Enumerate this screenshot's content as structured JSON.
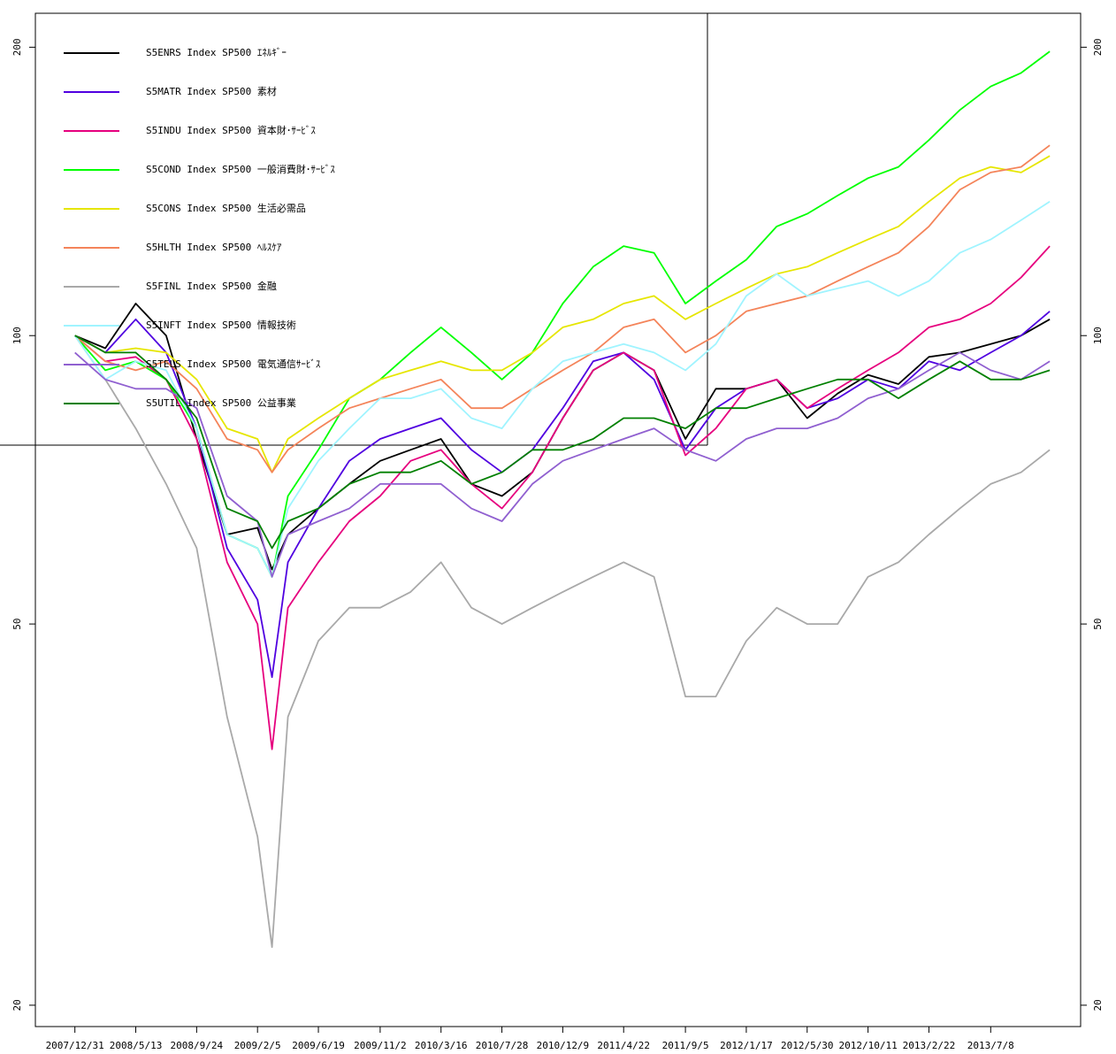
{
  "chart_data": {
    "type": "line",
    "x": [
      "2007/12/31",
      "2008/3/7",
      "2008/5/13",
      "2008/7/19",
      "2008/9/24",
      "2008/11/30",
      "2009/2/5",
      "2009/3/9",
      "2009/4/13",
      "2009/6/19",
      "2009/8/26",
      "2009/11/2",
      "2010/1/8",
      "2010/3/16",
      "2010/5/22",
      "2010/7/28",
      "2010/10/3",
      "2010/12/9",
      "2011/2/14",
      "2011/4/22",
      "2011/6/28",
      "2011/9/5",
      "2011/11/11",
      "2012/1/17",
      "2012/3/24",
      "2012/5/30",
      "2012/8/5",
      "2012/10/11",
      "2012/12/17",
      "2013/2/22",
      "2013/5/1",
      "2013/7/8",
      "2013/9/13",
      "2013/11/15"
    ],
    "xlim": [
      "2007/10/5",
      "2014/1/22"
    ],
    "xticks": [
      "2007/12/31",
      "2008/5/13",
      "2008/9/24",
      "2009/2/5",
      "2009/6/19",
      "2009/11/2",
      "2010/3/16",
      "2010/7/28",
      "2010/12/9",
      "2011/4/22",
      "2011/9/5",
      "2012/1/17",
      "2012/5/30",
      "2012/10/11",
      "2013/2/22",
      "2013/7/8"
    ],
    "ylim": [
      19,
      217
    ],
    "yticks": [
      20,
      50,
      100,
      200
    ],
    "log_y": true,
    "legend": "upper left",
    "series": [
      {
        "name": "S5ENRS Index SP500 ｴﾈﾙｷﾞｰ",
        "color": "#000000",
        "values": [
          100,
          97,
          108,
          100,
          78,
          62,
          63,
          57,
          62,
          66,
          70,
          74,
          76,
          78,
          70,
          68,
          72,
          82,
          92,
          96,
          92,
          78,
          88,
          88,
          90,
          82,
          87,
          91,
          89,
          95,
          96,
          98,
          100,
          104
        ]
      },
      {
        "name": "S5MATR Index SP500 素材",
        "color": "#5000e0",
        "values": [
          100,
          96,
          104,
          96,
          80,
          60,
          53,
          44,
          58,
          66,
          74,
          78,
          80,
          82,
          76,
          72,
          76,
          84,
          94,
          96,
          90,
          76,
          84,
          88,
          90,
          84,
          86,
          90,
          88,
          94,
          92,
          96,
          100,
          106
        ]
      },
      {
        "name": "S5INDU Index SP500 資本財･ｻｰﾋﾞｽ",
        "color": "#e6007e",
        "values": [
          100,
          94,
          95,
          90,
          78,
          58,
          50,
          37,
          52,
          58,
          64,
          68,
          74,
          76,
          70,
          66,
          72,
          82,
          92,
          96,
          92,
          75,
          80,
          88,
          90,
          84,
          88,
          92,
          96,
          102,
          104,
          108,
          115,
          124
        ]
      },
      {
        "name": "S5COND Index SP500 一般消費財･ｻｰﾋﾞｽ",
        "color": "#00ff00",
        "values": [
          100,
          92,
          94,
          90,
          80,
          62,
          60,
          56,
          68,
          76,
          86,
          90,
          96,
          102,
          96,
          90,
          96,
          108,
          118,
          124,
          122,
          108,
          114,
          120,
          130,
          134,
          140,
          146,
          150,
          160,
          172,
          182,
          188,
          198
        ]
      },
      {
        "name": "S5CONS Index SP500 生活必需品",
        "color": "#e6e600",
        "values": [
          100,
          96,
          97,
          96,
          90,
          80,
          78,
          72,
          78,
          82,
          86,
          90,
          92,
          94,
          92,
          92,
          96,
          102,
          104,
          108,
          110,
          104,
          108,
          112,
          116,
          118,
          122,
          126,
          130,
          138,
          146,
          150,
          148,
          154
        ]
      },
      {
        "name": "S5HLTH Index SP500 ﾍﾙｽｹｱ",
        "color": "#f4845a",
        "values": [
          100,
          94,
          92,
          94,
          88,
          78,
          76,
          72,
          76,
          80,
          84,
          86,
          88,
          90,
          84,
          84,
          88,
          92,
          96,
          102,
          104,
          96,
          100,
          106,
          108,
          110,
          114,
          118,
          122,
          130,
          142,
          148,
          150,
          158
        ]
      },
      {
        "name": "S5FINL Index SP500 金融",
        "color": "#a9a9a9",
        "values": [
          100,
          90,
          80,
          70,
          60,
          40,
          30,
          23,
          40,
          48,
          52,
          52,
          54,
          58,
          52,
          50,
          52,
          54,
          56,
          58,
          56,
          42,
          42,
          48,
          52,
          50,
          50,
          56,
          58,
          62,
          66,
          70,
          72,
          76
        ]
      },
      {
        "name": "S5INFT Index SP500 情報技術",
        "color": "#a0f4ff",
        "values": [
          100,
          90,
          94,
          92,
          80,
          62,
          60,
          56,
          66,
          74,
          80,
          86,
          86,
          88,
          82,
          80,
          88,
          94,
          96,
          98,
          96,
          92,
          98,
          110,
          116,
          110,
          112,
          114,
          110,
          114,
          122,
          126,
          132,
          138
        ]
      },
      {
        "name": "S5TELS Index SP500 電気通信ｻｰﾋﾞｽ",
        "color": "#9060d0",
        "values": [
          96,
          90,
          88,
          88,
          84,
          68,
          64,
          56,
          62,
          64,
          66,
          70,
          70,
          70,
          66,
          64,
          70,
          74,
          76,
          78,
          80,
          76,
          74,
          78,
          80,
          80,
          82,
          86,
          88,
          92,
          96,
          92,
          90,
          94
        ]
      },
      {
        "name": "S5UTIL Index SP500 公益事業",
        "color": "#008000",
        "values": [
          100,
          96,
          96,
          90,
          82,
          66,
          64,
          60,
          64,
          66,
          70,
          72,
          72,
          74,
          70,
          72,
          76,
          76,
          78,
          82,
          82,
          80,
          84,
          84,
          86,
          88,
          90,
          90,
          86,
          90,
          94,
          90,
          90,
          92
        ]
      }
    ]
  }
}
